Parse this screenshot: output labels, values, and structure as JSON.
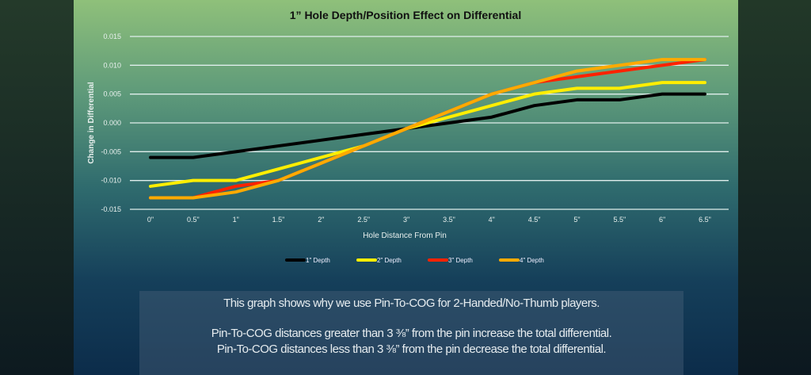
{
  "chart_data": {
    "type": "line",
    "title": "1” Hole Depth/Position Effect on Differential",
    "xlabel": "Hole Distance From Pin",
    "ylabel": "Change in Differential",
    "categories": [
      "0\"",
      "0.5\"",
      "1\"",
      "1.5\"",
      "2\"",
      "2.5\"",
      "3\"",
      "3.5\"",
      "4\"",
      "4.5\"",
      "5\"",
      "5.5\"",
      "6\"",
      "6.5\""
    ],
    "ylim": [
      -0.015,
      0.015
    ],
    "yticks": [
      "0.015",
      "0.010",
      "0.005",
      "0.000",
      "-0.005",
      "-0.010",
      "-0.015"
    ],
    "grid": true,
    "legend_position": "bottom",
    "series": [
      {
        "name": "1\" Depth",
        "color": "#000000",
        "values": [
          -0.006,
          -0.006,
          -0.005,
          -0.004,
          -0.003,
          -0.002,
          -0.001,
          0.0,
          0.001,
          0.003,
          0.004,
          0.004,
          0.005,
          0.005
        ]
      },
      {
        "name": "2\" Depth",
        "color": "#ffee00",
        "values": [
          -0.011,
          -0.01,
          -0.01,
          -0.008,
          -0.006,
          -0.004,
          -0.001,
          0.001,
          0.003,
          0.005,
          0.006,
          0.006,
          0.007,
          0.007
        ]
      },
      {
        "name": "3\" Depth",
        "color": "#ff2200",
        "values": [
          -0.013,
          -0.013,
          -0.011,
          -0.01,
          -0.007,
          -0.004,
          -0.001,
          0.002,
          0.005,
          0.007,
          0.008,
          0.009,
          0.01,
          0.011
        ]
      },
      {
        "name": "4\" Depth",
        "color": "#ffaa00",
        "values": [
          -0.013,
          -0.013,
          -0.012,
          -0.01,
          -0.007,
          -0.004,
          -0.001,
          0.002,
          0.005,
          0.007,
          0.009,
          0.01,
          0.011,
          0.011
        ]
      }
    ]
  },
  "caption": {
    "line1": "This graph shows why we use Pin-To-COG for 2-Handed/No-Thumb players.",
    "line2": "Pin-To-COG distances greater than 3 ⅜” from the pin increase the total differential.",
    "line3": "Pin-To-COG distances less than 3 ⅜” from the pin decrease the total differential."
  }
}
